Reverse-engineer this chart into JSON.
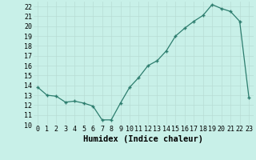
{
  "x": [
    0,
    1,
    2,
    3,
    4,
    5,
    6,
    7,
    8,
    9,
    10,
    11,
    12,
    13,
    14,
    15,
    16,
    17,
    18,
    19,
    20,
    21,
    22,
    23
  ],
  "y": [
    13.8,
    13.0,
    12.9,
    12.3,
    12.4,
    12.2,
    11.9,
    10.5,
    10.5,
    12.2,
    13.8,
    14.8,
    16.0,
    16.5,
    17.5,
    19.0,
    19.8,
    20.5,
    21.1,
    22.2,
    21.8,
    21.5,
    20.5,
    12.8
  ],
  "title": "",
  "xlabel": "Humidex (Indice chaleur)",
  "ylabel": "",
  "xlim": [
    -0.5,
    23.5
  ],
  "ylim": [
    10,
    22.5
  ],
  "yticks": [
    10,
    11,
    12,
    13,
    14,
    15,
    16,
    17,
    18,
    19,
    20,
    21,
    22
  ],
  "xticks": [
    0,
    1,
    2,
    3,
    4,
    5,
    6,
    7,
    8,
    9,
    10,
    11,
    12,
    13,
    14,
    15,
    16,
    17,
    18,
    19,
    20,
    21,
    22,
    23
  ],
  "line_color": "#2d7d6e",
  "marker_color": "#2d7d6e",
  "bg_color": "#c8f0e8",
  "grid_color": "#b8dcd4",
  "xlabel_fontsize": 7.5,
  "tick_fontsize": 6.0
}
